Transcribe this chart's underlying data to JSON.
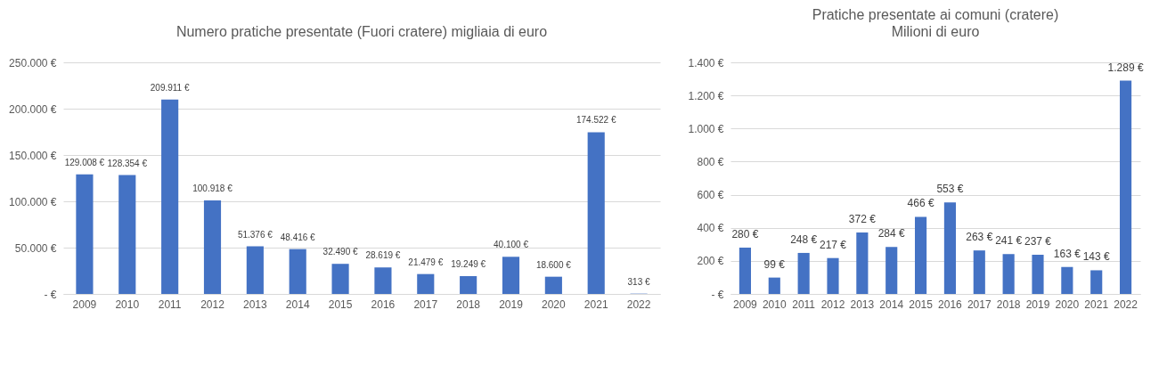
{
  "chart_data": [
    {
      "type": "bar",
      "title": "Numero pratiche presentate (Fuori cratere) migliaia di euro",
      "categories": [
        "2009",
        "2010",
        "2011",
        "2012",
        "2013",
        "2014",
        "2015",
        "2016",
        "2017",
        "2018",
        "2019",
        "2020",
        "2021",
        "2022"
      ],
      "values": [
        129008,
        128354,
        209911,
        100918,
        51376,
        48416,
        32490,
        28619,
        21479,
        19249,
        40100,
        18600,
        174522,
        313
      ],
      "value_labels": [
        "129.008 €",
        "128.354 €",
        "209.911 €",
        "100.918 €",
        "51.376 €",
        "48.416 €",
        "32.490 €",
        "28.619 €",
        "21.479 €",
        "19.249 €",
        "40.100 €",
        "18.600 €",
        "174.522 €",
        "313 €"
      ],
      "color": "#4472c4",
      "ylim": [
        0,
        250000
      ],
      "yticks": [
        {
          "value": 0,
          "label": "-   €"
        },
        {
          "value": 50000,
          "label": "50.000 €"
        },
        {
          "value": 100000,
          "label": "100.000 €"
        },
        {
          "value": 150000,
          "label": "150.000 €"
        },
        {
          "value": 200000,
          "label": "200.000 €"
        },
        {
          "value": 250000,
          "label": "250.000 €"
        }
      ],
      "grid": "y"
    },
    {
      "type": "bar",
      "title": "Pratiche presentate ai comuni (cratere)",
      "subtitle": "Milioni di euro",
      "categories": [
        "2009",
        "2010",
        "2011",
        "2012",
        "2013",
        "2014",
        "2015",
        "2016",
        "2017",
        "2018",
        "2019",
        "2020",
        "2021",
        "2022"
      ],
      "values": [
        280,
        99,
        248,
        217,
        372,
        284,
        466,
        553,
        263,
        241,
        237,
        163,
        143,
        1289
      ],
      "value_labels": [
        "280 €",
        "99 €",
        "248 €",
        "217 €",
        "372 €",
        "284 €",
        "466 €",
        "553 €",
        "263 €",
        "241 €",
        "237 €",
        "163 €",
        "143 €",
        "1.289 €"
      ],
      "color": "#4472c4",
      "ylim": [
        0,
        1400
      ],
      "yticks": [
        {
          "value": 0,
          "label": "-   €"
        },
        {
          "value": 200,
          "label": "200 €"
        },
        {
          "value": 400,
          "label": "400 €"
        },
        {
          "value": 600,
          "label": "600 €"
        },
        {
          "value": 800,
          "label": "800 €"
        },
        {
          "value": 1000,
          "label": "1.000 €"
        },
        {
          "value": 1200,
          "label": "1.200 €"
        },
        {
          "value": 1400,
          "label": "1.400 €"
        }
      ],
      "grid": "y"
    }
  ]
}
